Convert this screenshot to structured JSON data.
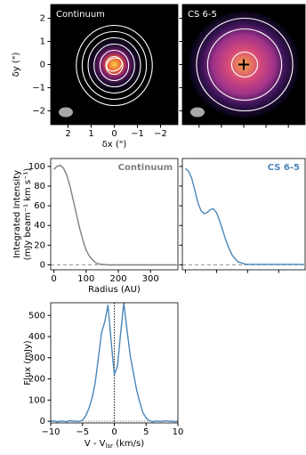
{
  "chart_data": [
    {
      "type": "image",
      "title": "Continuum",
      "xlabel": "δx (\")",
      "ylabel": "δy (\")",
      "xlim": [
        2.75,
        -2.75
      ],
      "ylim": [
        -2.6,
        2.6
      ],
      "xticks": [
        2,
        1,
        0,
        {
          "value": -1,
          "label": "−1"
        },
        {
          "value": -2,
          "label": "−2"
        }
      ],
      "yticks": [
        {
          "value": -2,
          "label": "−2"
        },
        {
          "value": -1,
          "label": "−1"
        },
        0,
        1,
        2
      ]
    },
    {
      "type": "image",
      "title": "CS 6-5",
      "xlim": [
        2.75,
        -2.75
      ],
      "ylim": [
        -2.6,
        2.6
      ],
      "xticks": [
        2,
        1,
        0,
        -1,
        -2
      ],
      "yticks": [
        -2,
        -1,
        0,
        1,
        2
      ]
    },
    {
      "type": "line",
      "title": "Continuum",
      "color": "#7f7f7f",
      "ylabel": [
        "Integrated Intensity",
        "(mJy beam⁻¹ km s⁻¹)"
      ],
      "xlabel": "Radius (AU)",
      "xlim": [
        -10,
        385
      ],
      "ylim": [
        -5,
        108
      ],
      "xticks": [
        0,
        100,
        200,
        300
      ],
      "yticks": [
        0,
        20,
        40,
        60,
        80,
        100
      ],
      "hline": 0,
      "x": [
        0,
        10,
        20,
        30,
        40,
        50,
        60,
        70,
        80,
        90,
        100,
        110,
        120,
        130,
        140,
        150,
        160,
        170,
        180,
        190,
        200,
        210,
        220,
        230,
        240,
        250,
        260,
        270,
        280,
        290,
        300,
        310,
        320,
        330,
        340,
        350,
        360,
        370,
        380
      ],
      "values": [
        97,
        100,
        101,
        98,
        91,
        80,
        66,
        51,
        37,
        25,
        15,
        9,
        5,
        2,
        1,
        0.5,
        0.2,
        0,
        0,
        0,
        0,
        0,
        0,
        0,
        0,
        0,
        0,
        0,
        0,
        0,
        0,
        0,
        0,
        0,
        0,
        0,
        0,
        0,
        0
      ]
    },
    {
      "type": "line",
      "title": "CS 6-5",
      "color": "#4a86b8",
      "xlim": [
        -10,
        385
      ],
      "ylim": [
        -5,
        108
      ],
      "xticks": [
        0,
        100,
        200,
        300
      ],
      "yticks": [
        0,
        20,
        40,
        60,
        80,
        100
      ],
      "hline": 0,
      "x": [
        0,
        10,
        20,
        30,
        40,
        50,
        60,
        70,
        80,
        90,
        100,
        110,
        120,
        130,
        140,
        150,
        160,
        170,
        180,
        190,
        200,
        210,
        220,
        230,
        240,
        250,
        260,
        270,
        280,
        290,
        300,
        310,
        320,
        330,
        340,
        350,
        360,
        370,
        380
      ],
      "values": [
        98,
        95,
        88,
        76,
        63,
        55,
        52,
        53,
        56,
        57,
        53,
        45,
        35,
        25,
        17,
        10,
        6,
        3,
        2,
        1,
        0.5,
        0.5,
        0.5,
        0.5,
        0.5,
        0.5,
        0.5,
        0.5,
        0.5,
        0.5,
        0.5,
        0.5,
        0.5,
        0.5,
        0.5,
        0.5,
        0.5,
        0.5,
        0.5
      ]
    },
    {
      "type": "line",
      "color": "#4a86b8",
      "ylabel": [
        "Flux (mJy)"
      ],
      "xlabel": [
        "V - V",
        "lsr",
        " (km/s)"
      ],
      "xlim": [
        -10,
        10
      ],
      "ylim": [
        -8,
        560
      ],
      "xticks": [
        {
          "value": -10,
          "label": "−10"
        },
        {
          "value": -5,
          "label": "−5"
        },
        0,
        5,
        10
      ],
      "yticks": [
        0,
        100,
        200,
        300,
        400,
        500
      ],
      "hline": 0,
      "vline": 0,
      "x": [
        -10,
        -9.5,
        -9,
        -8.5,
        -8,
        -7.5,
        -7,
        -6.5,
        -6,
        -5.5,
        -5,
        -4.5,
        -4,
        -3.5,
        -3,
        -2.5,
        -2,
        -1.5,
        -1,
        -0.5,
        0,
        0.5,
        1,
        1.5,
        2,
        2.5,
        3,
        3.5,
        4,
        4.5,
        5,
        5.5,
        6,
        6.5,
        7,
        7.5,
        8,
        8.5,
        9,
        9.5,
        10
      ],
      "values": [
        0,
        2,
        -3,
        1,
        0,
        -2,
        3,
        0,
        1,
        -1,
        5,
        25,
        60,
        110,
        180,
        300,
        420,
        470,
        550,
        380,
        220,
        260,
        420,
        560,
        430,
        310,
        230,
        150,
        90,
        40,
        15,
        3,
        -2,
        1,
        0,
        -1,
        2,
        0,
        1,
        -2,
        0
      ]
    }
  ]
}
